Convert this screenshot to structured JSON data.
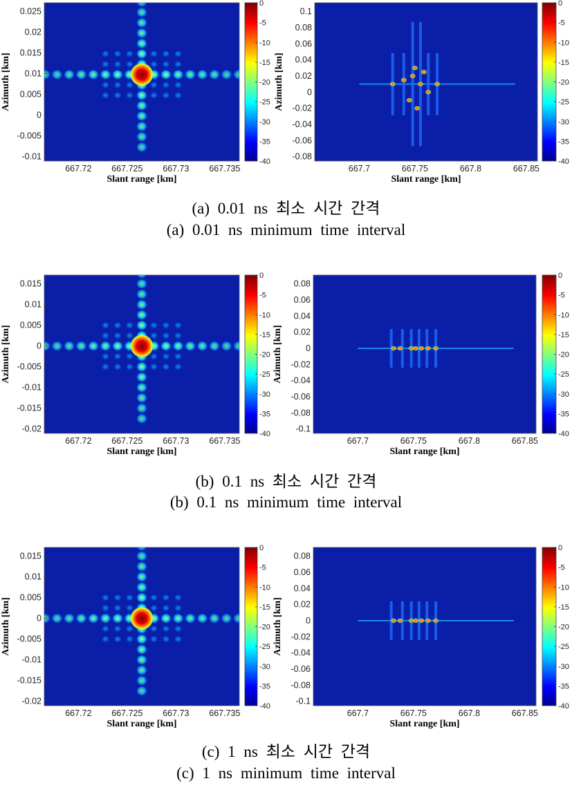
{
  "colorbar": {
    "ticks": [
      "0",
      "-5",
      "-10",
      "-15",
      "-20",
      "-25",
      "-30",
      "-35",
      "-40"
    ],
    "range": [
      -40,
      0
    ]
  },
  "figures": [
    {
      "caption_ko": "(a)  0.01  ns  최소  시간  간격",
      "caption_en": "(a)  0.01  ns  minimum  time  interval"
    },
    {
      "caption_ko": "(b)  0.1  ns  최소  시간  간격",
      "caption_en": "(b)  0.1  ns  minimum  time  interval"
    },
    {
      "caption_ko": "(c)  1  ns  최소  시간  간격",
      "caption_en": "(c)  1  ns  minimum  time  interval"
    }
  ],
  "chart_data": [
    {
      "type": "heatmap",
      "panel": "a-left",
      "xlabel": "Slant range [km]",
      "ylabel": "Azimuth [km]",
      "xticks": [
        "667.72",
        "667.725",
        "667.73",
        "667.735"
      ],
      "yticks": [
        "0.025",
        "0.02",
        "0.015",
        "0.01",
        "0.005",
        "0",
        "-0.005",
        "-0.01"
      ],
      "peak": {
        "x": 667.7265,
        "y": 0.0098,
        "value": 0
      },
      "colorbar_range": [
        -40,
        0
      ]
    },
    {
      "type": "heatmap",
      "panel": "a-right",
      "xlabel": "Slant range [km]",
      "ylabel": "Azimuth [km]",
      "xticks": [
        "667.7",
        "667.75",
        "667.8",
        "667.85"
      ],
      "yticks": [
        "0.1",
        "0.08",
        "0.06",
        "0.04",
        "0.02",
        "0",
        "-0.02",
        "-0.04",
        "-0.06",
        "-0.08"
      ],
      "peak": {
        "x": 667.75,
        "y": 0.01,
        "value": 0
      },
      "colorbar_range": [
        -40,
        0
      ]
    },
    {
      "type": "heatmap",
      "panel": "b-left",
      "xlabel": "Slant range [km]",
      "ylabel": "Azimuth [km]",
      "xticks": [
        "667.72",
        "667.725",
        "667.73",
        "667.735"
      ],
      "yticks": [
        "0.015",
        "0.01",
        "0.005",
        "0",
        "-0.005",
        "-0.01",
        "-0.015",
        "-0.02"
      ],
      "peak": {
        "x": 667.7265,
        "y": 0.0,
        "value": 0
      },
      "colorbar_range": [
        -40,
        0
      ]
    },
    {
      "type": "heatmap",
      "panel": "b-right",
      "xlabel": "Slant range [km]",
      "ylabel": "Azimuth [km]",
      "xticks": [
        "667.7",
        "667.75",
        "667.8",
        "667.85"
      ],
      "yticks": [
        "0.08",
        "0.06",
        "0.04",
        "0.02",
        "0",
        "-0.02",
        "-0.04",
        "-0.06",
        "-0.08",
        "-0.1"
      ],
      "peak": {
        "x": 667.75,
        "y": 0.0,
        "value": 0
      },
      "colorbar_range": [
        -40,
        0
      ]
    },
    {
      "type": "heatmap",
      "panel": "c-left",
      "xlabel": "Slant range [km]",
      "ylabel": "Azimuth [km]",
      "xticks": [
        "667.72",
        "667.725",
        "667.73",
        "667.735"
      ],
      "yticks": [
        "0.015",
        "0.01",
        "0.005",
        "0",
        "-0.005",
        "-0.01",
        "-0.015",
        "-0.02"
      ],
      "peak": {
        "x": 667.7265,
        "y": 0.0,
        "value": 0
      },
      "colorbar_range": [
        -40,
        0
      ]
    },
    {
      "type": "heatmap",
      "panel": "c-right",
      "xlabel": "Slant range [km]",
      "ylabel": "Azimuth [km]",
      "xticks": [
        "667.7",
        "667.75",
        "667.8",
        "667.85"
      ],
      "yticks": [
        "0.08",
        "0.06",
        "0.04",
        "0.02",
        "0",
        "-0.02",
        "-0.04",
        "-0.06",
        "-0.08",
        "-0.1"
      ],
      "peak": {
        "x": 667.75,
        "y": 0.0,
        "value": 0
      },
      "colorbar_range": [
        -40,
        0
      ]
    }
  ]
}
